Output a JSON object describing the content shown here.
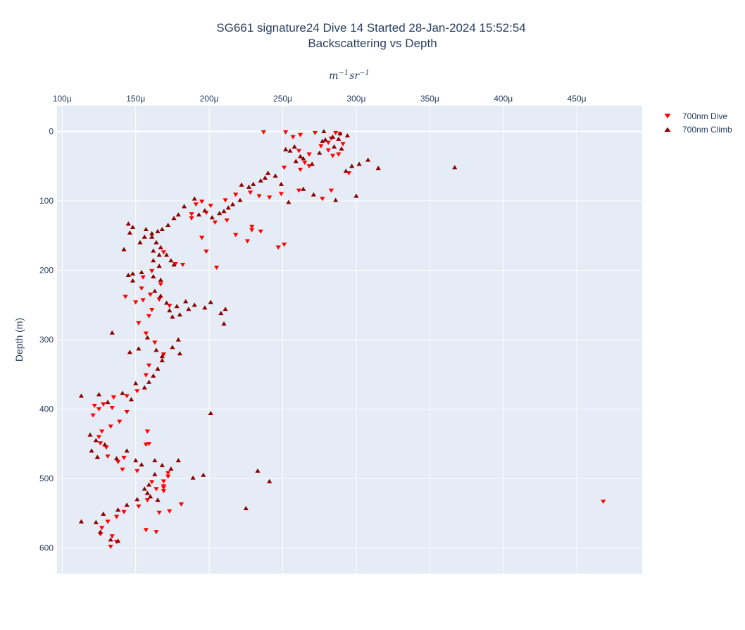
{
  "chart_data": {
    "type": "scatter",
    "title_line1": "SG661 signature24 Dive 14 Started 28-Jan-2024 15:52:54",
    "title_line2": "Backscattering vs Depth",
    "xlabel_unit": {
      "base1": "m",
      "exp1": "−1",
      "base2": "sr",
      "exp2": "−1"
    },
    "ylabel": "Depth (m)",
    "xlim": [
      9.65e-05,
      0.0004945
    ],
    "ylim": [
      -37,
      637
    ],
    "x_ticks": [
      0.0001,
      0.00015,
      0.0002,
      0.00025,
      0.0003,
      0.00035,
      0.0004,
      0.00045
    ],
    "x_tick_labels": [
      "100μ",
      "150μ",
      "200μ",
      "250μ",
      "300μ",
      "350μ",
      "400μ",
      "450μ"
    ],
    "y_ticks": [
      0,
      100,
      200,
      300,
      400,
      500,
      600
    ],
    "y_tick_labels": [
      "0",
      "100",
      "200",
      "300",
      "400",
      "500",
      "600"
    ],
    "x_axis_side": "top",
    "y_axis_reversed": true,
    "grid": true,
    "legend_position": "top-right",
    "series": [
      {
        "name": "700nm Dive",
        "marker": "triangle-down",
        "color": "#ff0000",
        "points": [
          [
            0.000237,
            1
          ],
          [
            0.000252,
            1
          ],
          [
            0.000262,
            5
          ],
          [
            0.000272,
            2
          ],
          [
            0.000286,
            2
          ],
          [
            0.000289,
            4
          ],
          [
            0.000257,
            8
          ],
          [
            0.000281,
            16
          ],
          [
            0.000283,
            10
          ],
          [
            0.000291,
            18
          ],
          [
            0.000276,
            21
          ],
          [
            0.000281,
            27
          ],
          [
            0.000261,
            28
          ],
          [
            0.000268,
            33
          ],
          [
            0.000265,
            45
          ],
          [
            0.000268,
            50
          ],
          [
            0.000284,
            35
          ],
          [
            0.000288,
            33
          ],
          [
            0.000262,
            55
          ],
          [
            0.000251,
            52
          ],
          [
            0.000295,
            60
          ],
          [
            0.000283,
            85
          ],
          [
            0.000277,
            97
          ],
          [
            0.000261,
            85
          ],
          [
            0.000249,
            90
          ],
          [
            0.000241,
            95
          ],
          [
            0.000234,
            93
          ],
          [
            0.000228,
            88
          ],
          [
            0.000218,
            91
          ],
          [
            0.000211,
            99
          ],
          [
            0.000201,
            107
          ],
          [
            0.000195,
            101
          ],
          [
            0.000191,
            105
          ],
          [
            0.000188,
            119
          ],
          [
            0.000198,
            117
          ],
          [
            0.000188,
            125
          ],
          [
            0.000204,
            131
          ],
          [
            0.000212,
            128
          ],
          [
            0.000229,
            142
          ],
          [
            0.000235,
            144
          ],
          [
            0.000218,
            149
          ],
          [
            0.000226,
            158
          ],
          [
            0.000229,
            137
          ],
          [
            0.000195,
            153
          ],
          [
            0.000198,
            173
          ],
          [
            0.000205,
            196
          ],
          [
            0.000247,
            167
          ],
          [
            0.000251,
            163
          ],
          [
            0.000177,
            191
          ],
          [
            0.000182,
            192
          ],
          [
            0.000169,
            174
          ],
          [
            0.000161,
            201
          ],
          [
            0.000155,
            210
          ],
          [
            0.000154,
            226
          ],
          [
            0.00016,
            235
          ],
          [
            0.000167,
            220
          ],
          [
            0.000143,
            238
          ],
          [
            0.000155,
            243
          ],
          [
            0.00015,
            246
          ],
          [
            0.000161,
            257
          ],
          [
            0.000166,
            242
          ],
          [
            0.000173,
            251
          ],
          [
            0.000159,
            266
          ],
          [
            0.000152,
            276
          ],
          [
            0.000157,
            291
          ],
          [
            0.000163,
            304
          ],
          [
            0.000169,
            321
          ],
          [
            0.000159,
            337
          ],
          [
            0.000157,
            351
          ],
          [
            0.000151,
            374
          ],
          [
            0.000144,
            381
          ],
          [
            0.000135,
            383
          ],
          [
            0.000128,
            393
          ],
          [
            0.000125,
            400
          ],
          [
            0.000121,
            409
          ],
          [
            0.000122,
            395
          ],
          [
            0.000134,
            398
          ],
          [
            0.000144,
            404
          ],
          [
            0.000139,
            418
          ],
          [
            0.000133,
            425
          ],
          [
            0.000127,
            432
          ],
          [
            0.000125,
            440
          ],
          [
            0.000126,
            449
          ],
          [
            0.00013,
            455
          ],
          [
            0.000131,
            468
          ],
          [
            0.000138,
            476
          ],
          [
            0.000142,
            470
          ],
          [
            0.000141,
            487
          ],
          [
            0.000151,
            489
          ],
          [
            0.000157,
            451
          ],
          [
            0.000158,
            432
          ],
          [
            0.000159,
            450
          ],
          [
            0.000172,
            492
          ],
          [
            0.000169,
            504
          ],
          [
            0.000164,
            515
          ],
          [
            0.000169,
            511
          ],
          [
            0.000169,
            518
          ],
          [
            0.000181,
            537
          ],
          [
            0.000173,
            547
          ],
          [
            0.000166,
            549
          ],
          [
            0.000158,
            531
          ],
          [
            0.000152,
            540
          ],
          [
            0.000142,
            548
          ],
          [
            0.000137,
            555
          ],
          [
            0.000131,
            562
          ],
          [
            0.000127,
            571
          ],
          [
            0.000126,
            580
          ],
          [
            0.000134,
            583
          ],
          [
            0.000137,
            591
          ],
          [
            0.000133,
            598
          ],
          [
            0.000164,
            577
          ],
          [
            0.000157,
            574
          ],
          [
            0.000468,
            533
          ],
          [
            0.000172,
            497
          ],
          [
            0.000169,
            513
          ],
          [
            0.000161,
            505
          ]
        ]
      },
      {
        "name": "700nm Climb",
        "marker": "triangle-up",
        "color": "#8b0000",
        "points": [
          [
            0.000278,
            0
          ],
          [
            0.000289,
            3
          ],
          [
            0.000294,
            6
          ],
          [
            0.000284,
            8
          ],
          [
            0.000279,
            12
          ],
          [
            0.000288,
            11
          ],
          [
            0.000277,
            14
          ],
          [
            0.000285,
            22
          ],
          [
            0.00029,
            25
          ],
          [
            0.000275,
            31
          ],
          [
            0.000262,
            36
          ],
          [
            0.000259,
            43
          ],
          [
            0.000255,
            28
          ],
          [
            0.000258,
            22
          ],
          [
            0.000252,
            26
          ],
          [
            0.000264,
            39
          ],
          [
            0.00027,
            47
          ],
          [
            0.000308,
            41
          ],
          [
            0.000302,
            47
          ],
          [
            0.000297,
            50
          ],
          [
            0.000293,
            57
          ],
          [
            0.000315,
            53
          ],
          [
            0.000367,
            52
          ],
          [
            0.0003,
            93
          ],
          [
            0.000286,
            99
          ],
          [
            0.000271,
            91
          ],
          [
            0.000264,
            83
          ],
          [
            0.000254,
            102
          ],
          [
            0.000249,
            76
          ],
          [
            0.000245,
            64
          ],
          [
            0.00024,
            60
          ],
          [
            0.000238,
            67
          ],
          [
            0.000235,
            71
          ],
          [
            0.00023,
            76
          ],
          [
            0.000227,
            80
          ],
          [
            0.000222,
            77
          ],
          [
            0.000221,
            99
          ],
          [
            0.000216,
            105
          ],
          [
            0.000213,
            110
          ],
          [
            0.00021,
            115
          ],
          [
            0.000207,
            118
          ],
          [
            0.000202,
            124
          ],
          [
            0.000197,
            114
          ],
          [
            0.000193,
            120
          ],
          [
            0.00019,
            97
          ],
          [
            0.000183,
            108
          ],
          [
            0.000179,
            120
          ],
          [
            0.000176,
            125
          ],
          [
            0.000172,
            135
          ],
          [
            0.000168,
            141
          ],
          [
            0.000165,
            144
          ],
          [
            0.000161,
            147
          ],
          [
            0.000157,
            141
          ],
          [
            0.000156,
            152
          ],
          [
            0.000153,
            160
          ],
          [
            0.000161,
            152
          ],
          [
            0.000164,
            160
          ],
          [
            0.000167,
            167
          ],
          [
            0.000162,
            172
          ],
          [
            0.000166,
            178
          ],
          [
            0.000162,
            186
          ],
          [
            0.000166,
            194
          ],
          [
            0.000171,
            178
          ],
          [
            0.000174,
            186
          ],
          [
            0.000176,
            192
          ],
          [
            0.000162,
            209
          ],
          [
            0.000167,
            214
          ],
          [
            0.000163,
            230
          ],
          [
            0.000167,
            237
          ],
          [
            0.000171,
            247
          ],
          [
            0.000173,
            258
          ],
          [
            0.000175,
            267
          ],
          [
            0.000178,
            252
          ],
          [
            0.00018,
            264
          ],
          [
            0.000184,
            245
          ],
          [
            0.000186,
            256
          ],
          [
            0.00019,
            250
          ],
          [
            0.000197,
            254
          ],
          [
            0.000201,
            246
          ],
          [
            0.000208,
            262
          ],
          [
            0.00021,
            277
          ],
          [
            0.000211,
            256
          ],
          [
            0.000145,
            133
          ],
          [
            0.000148,
            138
          ],
          [
            0.000146,
            146
          ],
          [
            0.000142,
            170
          ],
          [
            0.000148,
            205
          ],
          [
            0.000154,
            203
          ],
          [
            0.000148,
            215
          ],
          [
            0.000145,
            207
          ],
          [
            0.000134,
            290
          ],
          [
            0.000146,
            318
          ],
          [
            0.000152,
            313
          ],
          [
            0.000158,
            297
          ],
          [
            0.000164,
            315
          ],
          [
            0.000168,
            324
          ],
          [
            0.000175,
            311
          ],
          [
            0.000179,
            300
          ],
          [
            0.00018,
            320
          ],
          [
            0.000168,
            330
          ],
          [
            0.000165,
            342
          ],
          [
            0.000162,
            352
          ],
          [
            0.000159,
            361
          ],
          [
            0.000156,
            369
          ],
          [
            0.00015,
            363
          ],
          [
            0.000147,
            386
          ],
          [
            0.000141,
            377
          ],
          [
            0.000131,
            390
          ],
          [
            0.000125,
            379
          ],
          [
            0.000113,
            381
          ],
          [
            0.000119,
            437
          ],
          [
            0.000123,
            445
          ],
          [
            0.000129,
            451
          ],
          [
            0.00012,
            460
          ],
          [
            0.000124,
            469
          ],
          [
            0.000137,
            471
          ],
          [
            0.000144,
            460
          ],
          [
            0.00015,
            474
          ],
          [
            0.000154,
            480
          ],
          [
            0.000163,
            494
          ],
          [
            0.000159,
            509
          ],
          [
            0.000156,
            515
          ],
          [
            0.000151,
            530
          ],
          [
            0.000144,
            538
          ],
          [
            0.000138,
            545
          ],
          [
            0.000128,
            551
          ],
          [
            0.000123,
            563
          ],
          [
            0.000126,
            577
          ],
          [
            0.000133,
            588
          ],
          [
            0.000138,
            590
          ],
          [
            0.000113,
            562
          ],
          [
            0.000201,
            406
          ],
          [
            0.000233,
            489
          ],
          [
            0.000241,
            504
          ],
          [
            0.000225,
            543
          ],
          [
            0.000189,
            499
          ],
          [
            0.000196,
            495
          ],
          [
            0.000163,
            474
          ],
          [
            0.000168,
            481
          ],
          [
            0.000174,
            486
          ],
          [
            0.000179,
            474
          ],
          [
            0.000158,
            521
          ],
          [
            0.00016,
            526
          ],
          [
            0.000165,
            531
          ]
        ]
      }
    ]
  }
}
